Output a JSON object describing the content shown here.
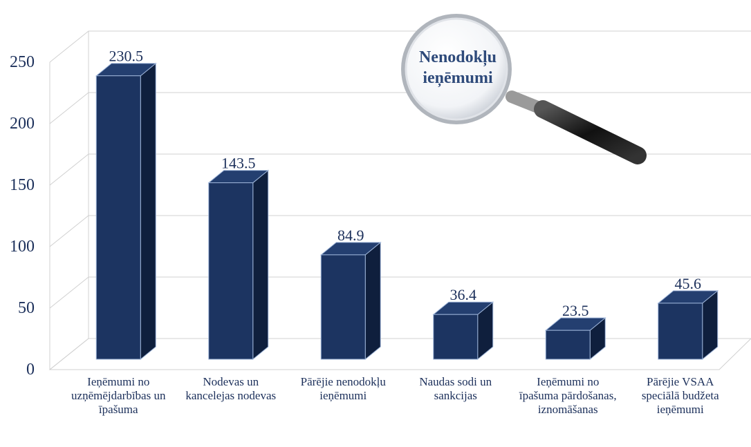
{
  "chart_data": {
    "type": "bar",
    "annotation": "Nenodokļu ieņēmumi",
    "categories": [
      "Ieņēmumi no uzņēmējdarbības un īpašuma",
      "Nodevas un kancelejas nodevas",
      "Pārējie nenodokļu ieņēmumi",
      "Naudas sodi un sankcijas",
      "Ieņēmumi no īpašuma pārdošanas, iznomāšanas",
      "Pārējie VSAA speciālā budžeta ieņēmumi"
    ],
    "values": [
      230.5,
      143.5,
      84.9,
      36.4,
      23.5,
      45.6
    ],
    "color": "#1c3461",
    "ylim": [
      0,
      250
    ],
    "yticks": [
      0,
      50,
      100,
      150,
      200,
      250
    ],
    "grid": true
  }
}
